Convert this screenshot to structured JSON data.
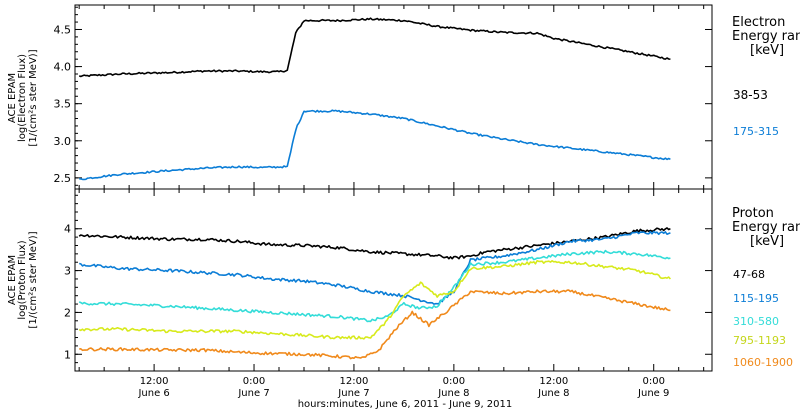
{
  "figure": {
    "xlabel": "hours:minutes, June  6, 2011 - June  9, 2011",
    "x_ticks": [
      {
        "t": 12,
        "time": "12:00",
        "date": "June 6"
      },
      {
        "t": 24,
        "time": "0:00",
        "date": "June 7"
      },
      {
        "t": 36,
        "time": "12:00",
        "date": "June 7"
      },
      {
        "t": 48,
        "time": "0:00",
        "date": "June 8"
      },
      {
        "t": 60,
        "time": "12:00",
        "date": "June 8"
      },
      {
        "t": 72,
        "time": "0:00",
        "date": "June 9"
      }
    ],
    "x_range_hours": [
      2.5,
      79
    ]
  },
  "chart_data": [
    {
      "type": "scatter",
      "panel": "electron",
      "ylabel": [
        "ACE EPAM",
        "log(Electron Flux)",
        "[1/(cm²s ster MeV)]"
      ],
      "yticks": [
        "2.5",
        "3.0",
        "3.5",
        "4.0",
        "4.5"
      ],
      "ylim": [
        2.35,
        4.83
      ],
      "legend_title": [
        "Electron",
        "Energy ranges",
        "[keV]"
      ],
      "series": [
        {
          "name": "38-53",
          "color": "#000000",
          "points": [
            [
              3,
              3.87
            ],
            [
              8,
              3.9
            ],
            [
              14,
              3.92
            ],
            [
              18,
              3.94
            ],
            [
              22,
              3.94
            ],
            [
              25,
              3.93
            ],
            [
              27,
              3.93
            ],
            [
              28,
              3.95
            ],
            [
              29,
              4.45
            ],
            [
              30,
              4.62
            ],
            [
              34,
              4.62
            ],
            [
              38,
              4.64
            ],
            [
              42,
              4.62
            ],
            [
              46,
              4.54
            ],
            [
              50,
              4.49
            ],
            [
              54,
              4.46
            ],
            [
              58,
              4.45
            ],
            [
              60,
              4.38
            ],
            [
              64,
              4.3
            ],
            [
              68,
              4.22
            ],
            [
              72,
              4.14
            ],
            [
              74,
              4.1
            ]
          ]
        },
        {
          "name": "175-315",
          "color": "#0b7dd6",
          "points": [
            [
              3,
              2.48
            ],
            [
              8,
              2.55
            ],
            [
              14,
              2.6
            ],
            [
              18,
              2.63
            ],
            [
              22,
              2.65
            ],
            [
              25,
              2.64
            ],
            [
              28,
              2.65
            ],
            [
              29,
              3.15
            ],
            [
              30,
              3.4
            ],
            [
              34,
              3.4
            ],
            [
              38,
              3.36
            ],
            [
              42,
              3.3
            ],
            [
              46,
              3.2
            ],
            [
              50,
              3.1
            ],
            [
              54,
              3.02
            ],
            [
              58,
              2.95
            ],
            [
              62,
              2.9
            ],
            [
              66,
              2.85
            ],
            [
              70,
              2.8
            ],
            [
              74,
              2.75
            ]
          ]
        }
      ]
    },
    {
      "type": "scatter",
      "panel": "proton",
      "ylabel": [
        "ACE EPAM",
        "log(Proton Flux)",
        "[1/(cm²s ster MeV)]"
      ],
      "yticks": [
        "1",
        "2",
        "3",
        "4"
      ],
      "ylim": [
        0.6,
        4.95
      ],
      "legend_title": [
        "Proton",
        "Energy ranges",
        "[keV]"
      ],
      "series": [
        {
          "name": "47-68",
          "color": "#000000",
          "points": [
            [
              3,
              3.85
            ],
            [
              8,
              3.8
            ],
            [
              14,
              3.75
            ],
            [
              18,
              3.75
            ],
            [
              22,
              3.7
            ],
            [
              26,
              3.62
            ],
            [
              30,
              3.6
            ],
            [
              34,
              3.55
            ],
            [
              38,
              3.45
            ],
            [
              42,
              3.4
            ],
            [
              46,
              3.35
            ],
            [
              48,
              3.3
            ],
            [
              50,
              3.35
            ],
            [
              52,
              3.45
            ],
            [
              54,
              3.5
            ],
            [
              58,
              3.6
            ],
            [
              62,
              3.7
            ],
            [
              66,
              3.8
            ],
            [
              70,
              3.95
            ],
            [
              74,
              4.0
            ]
          ]
        },
        {
          "name": "115-195",
          "color": "#0b7dd6",
          "points": [
            [
              3,
              3.15
            ],
            [
              8,
              3.05
            ],
            [
              14,
              3.0
            ],
            [
              18,
              2.95
            ],
            [
              22,
              2.9
            ],
            [
              26,
              2.8
            ],
            [
              30,
              2.75
            ],
            [
              34,
              2.65
            ],
            [
              38,
              2.5
            ],
            [
              42,
              2.4
            ],
            [
              44,
              2.3
            ],
            [
              46,
              2.2
            ],
            [
              48,
              2.5
            ],
            [
              50,
              3.25
            ],
            [
              54,
              3.35
            ],
            [
              58,
              3.5
            ],
            [
              62,
              3.7
            ],
            [
              66,
              3.75
            ],
            [
              70,
              3.9
            ],
            [
              74,
              3.9
            ]
          ]
        },
        {
          "name": "310-580",
          "color": "#33dcd8",
          "points": [
            [
              3,
              2.22
            ],
            [
              8,
              2.2
            ],
            [
              14,
              2.15
            ],
            [
              18,
              2.1
            ],
            [
              22,
              2.05
            ],
            [
              26,
              2.0
            ],
            [
              30,
              1.95
            ],
            [
              34,
              1.9
            ],
            [
              38,
              1.8
            ],
            [
              40,
              1.9
            ],
            [
              42,
              2.2
            ],
            [
              44,
              2.1
            ],
            [
              46,
              2.15
            ],
            [
              48,
              2.6
            ],
            [
              50,
              3.15
            ],
            [
              54,
              3.2
            ],
            [
              58,
              3.3
            ],
            [
              62,
              3.4
            ],
            [
              66,
              3.45
            ],
            [
              70,
              3.4
            ],
            [
              74,
              3.3
            ]
          ]
        },
        {
          "name": "795-1193",
          "color": "#d7ea1c",
          "points": [
            [
              3,
              1.6
            ],
            [
              8,
              1.6
            ],
            [
              14,
              1.55
            ],
            [
              18,
              1.55
            ],
            [
              22,
              1.55
            ],
            [
              26,
              1.5
            ],
            [
              30,
              1.45
            ],
            [
              34,
              1.4
            ],
            [
              38,
              1.4
            ],
            [
              40,
              1.8
            ],
            [
              42,
              2.4
            ],
            [
              44,
              2.7
            ],
            [
              46,
              2.4
            ],
            [
              48,
              2.5
            ],
            [
              50,
              3.05
            ],
            [
              54,
              3.1
            ],
            [
              58,
              3.2
            ],
            [
              62,
              3.2
            ],
            [
              66,
              3.1
            ],
            [
              70,
              3.0
            ],
            [
              74,
              2.8
            ]
          ]
        },
        {
          "name": "1060-1900",
          "color": "#f08a1c",
          "points": [
            [
              3,
              1.12
            ],
            [
              8,
              1.12
            ],
            [
              14,
              1.1
            ],
            [
              18,
              1.1
            ],
            [
              22,
              1.05
            ],
            [
              26,
              1.02
            ],
            [
              30,
              1.0
            ],
            [
              34,
              0.95
            ],
            [
              37,
              0.9
            ],
            [
              39,
              1.1
            ],
            [
              41,
              1.6
            ],
            [
              43,
              2.0
            ],
            [
              45,
              1.7
            ],
            [
              47,
              2.0
            ],
            [
              50,
              2.5
            ],
            [
              54,
              2.45
            ],
            [
              58,
              2.5
            ],
            [
              62,
              2.5
            ],
            [
              66,
              2.35
            ],
            [
              70,
              2.2
            ],
            [
              74,
              2.05
            ]
          ]
        }
      ]
    }
  ]
}
